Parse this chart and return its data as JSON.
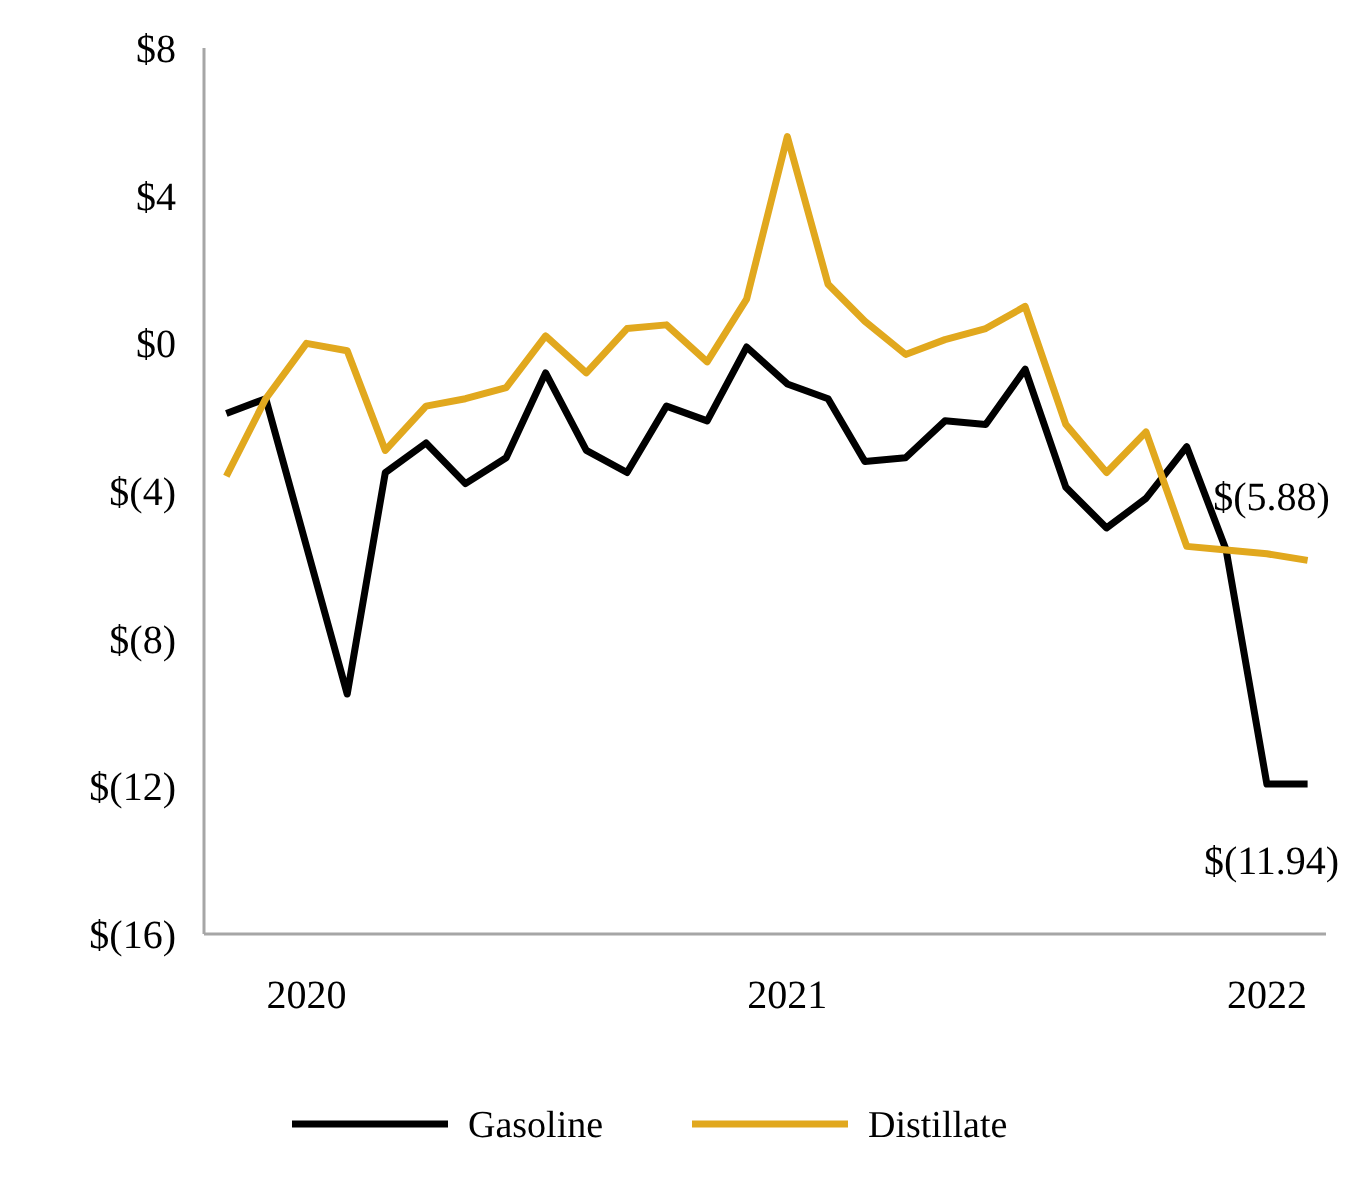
{
  "chart_data": {
    "type": "line",
    "x": [
      "2019-11",
      "2019-12",
      "2020-01",
      "2020-02",
      "2020-03",
      "2020-04",
      "2020-05",
      "2020-06",
      "2020-07",
      "2020-08",
      "2020-09",
      "2020-10",
      "2020-11",
      "2020-12",
      "2021-01",
      "2021-02",
      "2021-03",
      "2021-04",
      "2021-05",
      "2021-06",
      "2021-07",
      "2021-08",
      "2021-09",
      "2021-10",
      "2021-11",
      "2021-12",
      "2022-01",
      "2022-02"
    ],
    "series": [
      {
        "name": "Gasoline",
        "color": "#000000",
        "values": [
          -1.9,
          -1.5,
          -5.5,
          -9.5,
          -3.5,
          -2.7,
          -3.8,
          -3.1,
          -0.8,
          -2.9,
          -3.5,
          -1.7,
          -2.1,
          -0.1,
          -1.1,
          -1.5,
          -3.2,
          -3.1,
          -2.1,
          -2.2,
          -0.7,
          -3.9,
          -5.0,
          -4.2,
          -2.8,
          -5.6,
          -11.94,
          -11.94
        ]
      },
      {
        "name": "Distillate",
        "color": "#e1a81e",
        "values": [
          -3.6,
          -1.5,
          0.0,
          -0.2,
          -2.9,
          -1.7,
          -1.5,
          -1.2,
          0.2,
          -0.8,
          0.4,
          0.5,
          -0.5,
          1.2,
          5.6,
          1.6,
          0.6,
          -0.3,
          0.1,
          0.4,
          1.0,
          -2.2,
          -3.5,
          -2.4,
          -5.5,
          -5.6,
          -5.7,
          -5.88
        ]
      }
    ],
    "xlim": [
      "2019-10-15",
      "2022-02-15"
    ],
    "xticks": [
      {
        "value": "2020-01",
        "label": "2020"
      },
      {
        "value": "2021-01",
        "label": "2021"
      },
      {
        "value": "2022-01",
        "label": "2022"
      }
    ],
    "ylim": [
      -16,
      8
    ],
    "yticks": [
      {
        "value": 8,
        "label": "$8"
      },
      {
        "value": 4,
        "label": "$4"
      },
      {
        "value": 0,
        "label": "$0"
      },
      {
        "value": -4,
        "label": "$(4)"
      },
      {
        "value": -8,
        "label": "$(8)"
      },
      {
        "value": -12,
        "label": "$(12)"
      },
      {
        "value": -16,
        "label": "$(16)"
      }
    ],
    "annotations": [
      {
        "text": "$(5.88)",
        "x": "2022-02",
        "y": -5.88
      },
      {
        "text": "$(11.94)",
        "x": "2022-02",
        "y": -11.94
      }
    ],
    "grid": false,
    "legend": "bottom",
    "marker": "none",
    "line_style": "solid"
  }
}
